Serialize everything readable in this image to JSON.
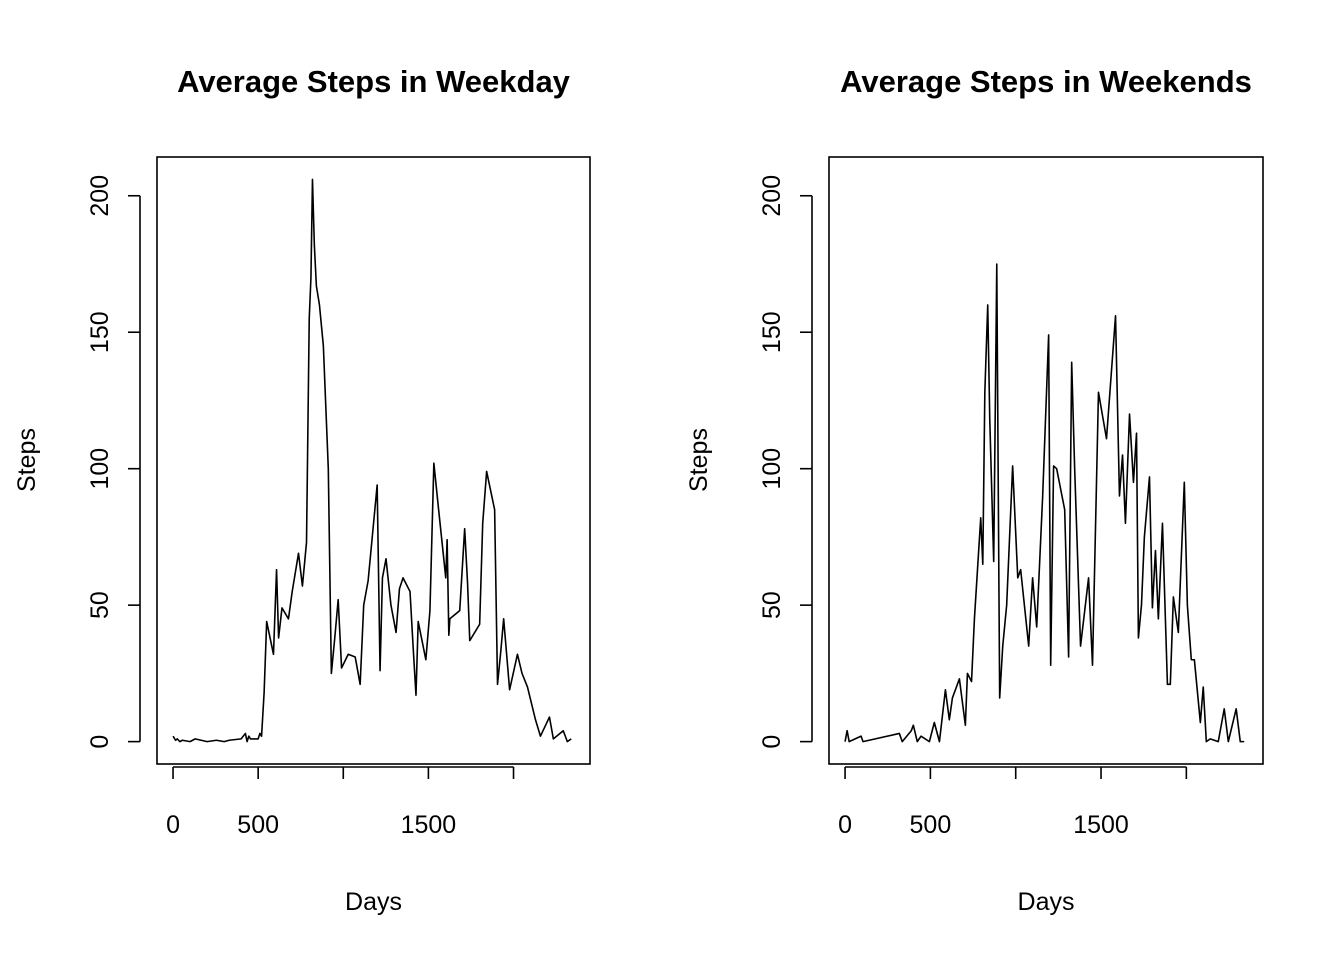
{
  "chart_data": [
    {
      "type": "line",
      "title": "Average Steps in Weekday",
      "xlabel": "Days",
      "ylabel": "Steps",
      "color": "#000000",
      "x": [
        0,
        15,
        25,
        40,
        55,
        100,
        130,
        200,
        255,
        300,
        330,
        400,
        425,
        435,
        445,
        455,
        500,
        510,
        520,
        535,
        550,
        590,
        608,
        620,
        640,
        678,
        700,
        737,
        760,
        784,
        800,
        810,
        819,
        830,
        842,
        860,
        883,
        912,
        930,
        950,
        970,
        990,
        1029,
        1070,
        1099,
        1120,
        1146,
        1199,
        1205,
        1216,
        1230,
        1251,
        1280,
        1310,
        1330,
        1351,
        1392,
        1410,
        1427,
        1440,
        1485,
        1509,
        1532,
        1560,
        1602,
        1610,
        1620,
        1626,
        1684,
        1713,
        1730,
        1743,
        1801,
        1819,
        1842,
        1889,
        1906,
        1925,
        1942,
        1977,
        2023,
        2050,
        2082,
        2129,
        2158,
        2211,
        2234,
        2292,
        2316,
        2339
      ],
      "values": [
        2,
        0.5,
        1,
        0,
        0.5,
        0,
        1,
        0,
        0.5,
        0,
        0.5,
        1,
        3,
        0,
        2,
        1,
        1,
        3,
        2,
        18,
        44,
        32,
        63,
        38,
        49,
        45,
        55,
        69,
        57,
        73,
        155,
        170,
        206,
        182,
        167,
        160,
        145,
        100,
        25,
        38,
        52,
        27,
        32,
        31,
        21,
        50,
        59,
        94,
        70,
        26,
        60,
        67,
        50,
        40,
        56,
        60,
        55,
        35,
        17,
        44,
        30,
        48,
        102,
        85,
        60,
        74,
        39,
        45,
        48,
        78,
        58,
        37,
        43,
        80,
        99,
        85,
        21,
        33,
        45,
        19,
        32,
        25,
        20,
        8,
        2,
        9,
        1,
        4,
        0,
        1
      ],
      "xlim": [
        -94.2,
        2449.2
      ],
      "ylim": [
        -8.2,
        214.2
      ],
      "xticks": [
        0,
        500,
        {
          "value": 1000,
          "label": null
        },
        1500,
        {
          "value": 2000,
          "label": null
        }
      ],
      "yticks": [
        0,
        50,
        100,
        150,
        200
      ]
    },
    {
      "type": "line",
      "title": "Average Steps in Weekends",
      "xlabel": "Days",
      "ylabel": "Steps",
      "color": "#000000",
      "x": [
        0,
        12,
        24,
        94,
        105,
        318,
        335,
        388,
        400,
        423,
        445,
        494,
        523,
        553,
        588,
        611,
        629,
        670,
        705,
        717,
        741,
        758,
        795,
        807,
        819,
        836,
        848,
        871,
        889,
        906,
        924,
        947,
        982,
        1012,
        1029,
        1076,
        1099,
        1123,
        1158,
        1193,
        1205,
        1222,
        1240,
        1287,
        1310,
        1328,
        1345,
        1380,
        1427,
        1450,
        1485,
        1532,
        1585,
        1608,
        1626,
        1643,
        1667,
        1690,
        1708,
        1719,
        1737,
        1754,
        1784,
        1801,
        1819,
        1836,
        1860,
        1889,
        1906,
        1924,
        1953,
        1988,
        2006,
        2029,
        2047,
        2082,
        2099,
        2117,
        2140,
        2187,
        2222,
        2246,
        2292,
        2316,
        2339
      ],
      "values": [
        0,
        4,
        0,
        2,
        0,
        3,
        0,
        4,
        6,
        0,
        2,
        0,
        7,
        0,
        19,
        8,
        16,
        23,
        6,
        25,
        22,
        45,
        82,
        65,
        128,
        160,
        118,
        66,
        175,
        16,
        35,
        50,
        101,
        60,
        63,
        35,
        60,
        42,
        90,
        149,
        28,
        101,
        100,
        85,
        31,
        139,
        101,
        35,
        60,
        28,
        128,
        111,
        156,
        90,
        105,
        80,
        120,
        95,
        113,
        38,
        50,
        75,
        97,
        49,
        70,
        45,
        80,
        21,
        21,
        53,
        40,
        95,
        50,
        30,
        30,
        7,
        20,
        0,
        1,
        0,
        12,
        0,
        12,
        0,
        0
      ],
      "xlim": [
        -94.2,
        2449.2
      ],
      "ylim": [
        -8.2,
        214.2
      ],
      "xticks": [
        0,
        500,
        {
          "value": 1000,
          "label": null
        },
        1500,
        {
          "value": 2000,
          "label": null
        }
      ],
      "yticks": [
        0,
        50,
        100,
        150,
        200
      ]
    }
  ]
}
